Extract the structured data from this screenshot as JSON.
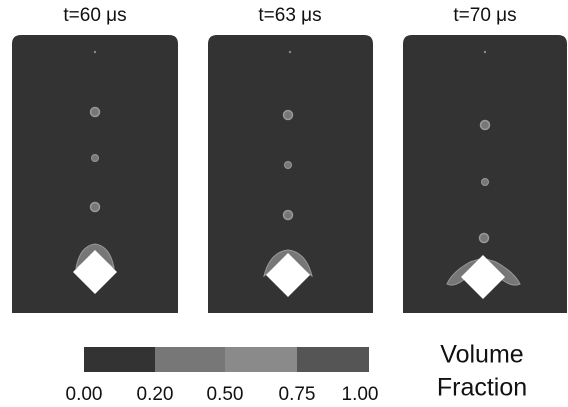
{
  "panels": [
    {
      "title": "t=60 μs"
    },
    {
      "title": "t=63 μs"
    },
    {
      "title": "t=70 μs"
    }
  ],
  "colorbar": {
    "title_line1": "Volume",
    "title_line2": "Fraction",
    "tick_labels": [
      "0.00",
      "0.20",
      "0.50",
      "0.75",
      "1.00"
    ]
  }
}
